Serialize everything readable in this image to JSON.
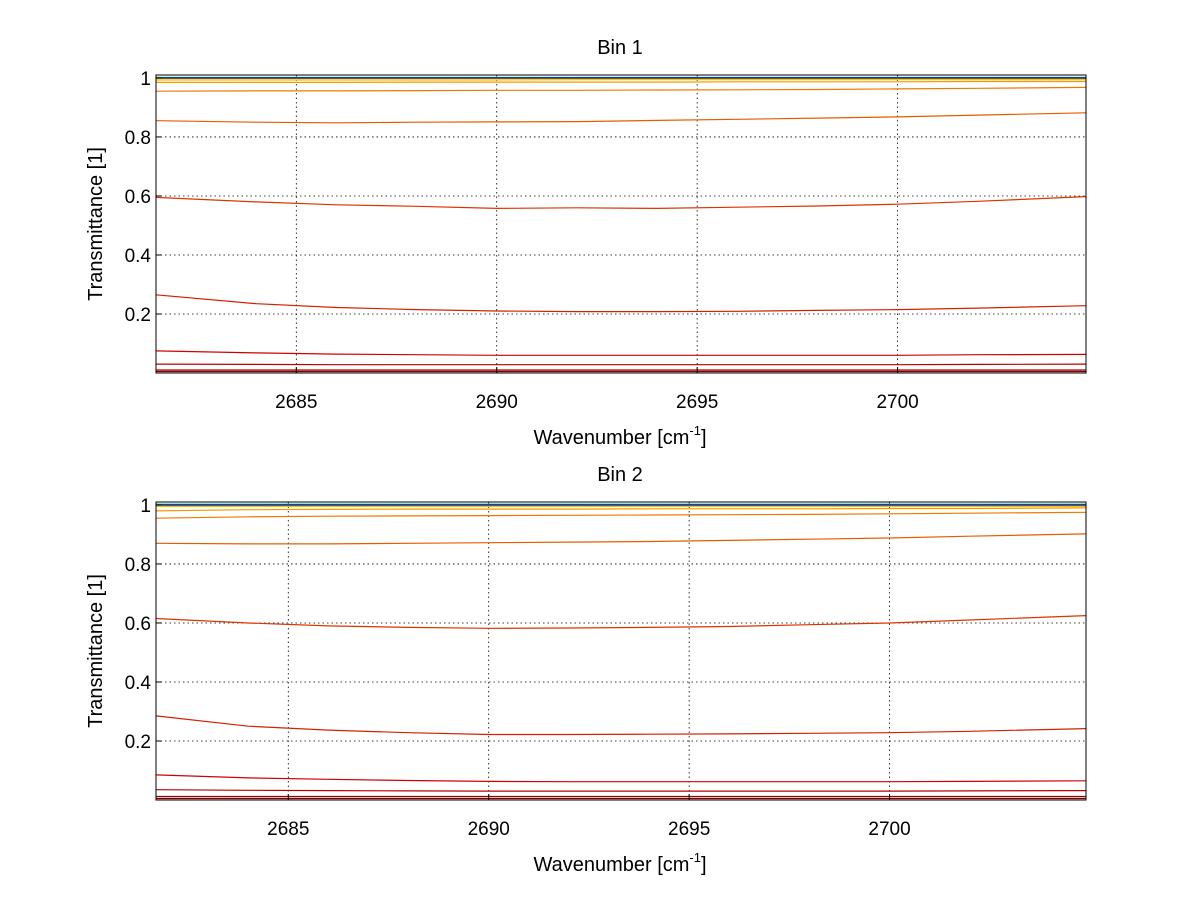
{
  "figure": {
    "background": "#ffffff"
  },
  "chart_data": [
    {
      "type": "line",
      "title": "Bin 1",
      "xlabel": "Wavenumber [cm",
      "xlabel_sup": "-1",
      "xlabel_suffix": "]",
      "ylabel": "Transmittance [1]",
      "xlim": [
        2681.5,
        2704.7
      ],
      "ylim": [
        0,
        1.01
      ],
      "xticks": [
        2685,
        2690,
        2695,
        2700
      ],
      "yticks": [
        0.2,
        0.4,
        0.6,
        0.8,
        1
      ],
      "ytick_labels": [
        "0.2",
        "0.4",
        "0.6",
        "0.8",
        "1"
      ],
      "grid": true,
      "x": [
        2681.5,
        2684,
        2686,
        2688,
        2690,
        2692,
        2694,
        2696,
        2698,
        2700,
        2702,
        2704.7
      ],
      "series": [
        {
          "color": "#800000",
          "values": [
            0.005,
            0.005,
            0.005,
            0.005,
            0.005,
            0.005,
            0.005,
            0.005,
            0.005,
            0.005,
            0.005,
            0.005
          ]
        },
        {
          "color": "#9b0000",
          "values": [
            0.01,
            0.01,
            0.01,
            0.01,
            0.01,
            0.01,
            0.01,
            0.01,
            0.01,
            0.01,
            0.01,
            0.01
          ]
        },
        {
          "color": "#b80000",
          "values": [
            0.03,
            0.029,
            0.028,
            0.028,
            0.028,
            0.028,
            0.028,
            0.028,
            0.028,
            0.028,
            0.029,
            0.03
          ]
        },
        {
          "color": "#d40000",
          "values": [
            0.075,
            0.068,
            0.064,
            0.062,
            0.06,
            0.06,
            0.06,
            0.06,
            0.06,
            0.06,
            0.062,
            0.063
          ]
        },
        {
          "color": "#d42000",
          "values": [
            0.265,
            0.235,
            0.222,
            0.215,
            0.21,
            0.208,
            0.208,
            0.209,
            0.212,
            0.215,
            0.22,
            0.228
          ]
        },
        {
          "color": "#dd3300",
          "values": [
            0.595,
            0.58,
            0.57,
            0.565,
            0.558,
            0.56,
            0.558,
            0.562,
            0.566,
            0.572,
            0.582,
            0.598
          ]
        },
        {
          "color": "#e85c00",
          "values": [
            0.855,
            0.85,
            0.848,
            0.85,
            0.851,
            0.852,
            0.856,
            0.86,
            0.864,
            0.868,
            0.874,
            0.882
          ]
        },
        {
          "color": "#f07800",
          "values": [
            0.955,
            0.956,
            0.956,
            0.957,
            0.958,
            0.958,
            0.959,
            0.96,
            0.961,
            0.963,
            0.965,
            0.968
          ]
        },
        {
          "color": "#f59a00",
          "values": [
            0.985,
            0.985,
            0.985,
            0.986,
            0.986,
            0.986,
            0.986,
            0.987,
            0.987,
            0.987,
            0.988,
            0.988
          ]
        },
        {
          "color": "#fbbf00",
          "values": [
            0.993,
            0.993,
            0.993,
            0.993,
            0.993,
            0.994,
            0.994,
            0.994,
            0.994,
            0.994,
            0.994,
            0.994
          ]
        },
        {
          "color": "#ffdd00",
          "values": [
            0.998,
            0.998,
            0.998,
            0.998,
            0.998,
            0.998,
            0.998,
            0.998,
            0.998,
            0.998,
            0.998,
            0.998
          ]
        },
        {
          "color": "#22c3c3",
          "values": [
            1.002,
            1.002,
            1.002,
            1.002,
            1.002,
            1.002,
            1.002,
            1.002,
            1.002,
            1.002,
            1.002,
            1.002
          ]
        },
        {
          "color": "#000080",
          "values": [
            1.0,
            1.0,
            1.0,
            1.0,
            1.0,
            1.0,
            1.0,
            1.0,
            1.0,
            1.0,
            1.0,
            1.0
          ]
        }
      ]
    },
    {
      "type": "line",
      "title": "Bin 2",
      "xlabel": "Wavenumber [cm",
      "xlabel_sup": "-1",
      "xlabel_suffix": "]",
      "ylabel": "Transmittance [1]",
      "xlim": [
        2681.7,
        2704.9
      ],
      "ylim": [
        0,
        1.01
      ],
      "xticks": [
        2685,
        2690,
        2695,
        2700
      ],
      "yticks": [
        0.2,
        0.4,
        0.6,
        0.8,
        1
      ],
      "ytick_labels": [
        "0.2",
        "0.4",
        "0.6",
        "0.8",
        "1"
      ],
      "grid": true,
      "x": [
        2681.7,
        2684,
        2686,
        2688,
        2690,
        2692,
        2694,
        2696,
        2698,
        2700,
        2702,
        2704.9
      ],
      "series": [
        {
          "color": "#800000",
          "values": [
            0.005,
            0.005,
            0.005,
            0.005,
            0.005,
            0.005,
            0.005,
            0.005,
            0.005,
            0.005,
            0.005,
            0.005
          ]
        },
        {
          "color": "#9b0000",
          "values": [
            0.012,
            0.012,
            0.012,
            0.012,
            0.012,
            0.012,
            0.012,
            0.012,
            0.012,
            0.012,
            0.012,
            0.012
          ]
        },
        {
          "color": "#b80000",
          "values": [
            0.035,
            0.033,
            0.032,
            0.031,
            0.03,
            0.03,
            0.03,
            0.03,
            0.03,
            0.03,
            0.031,
            0.032
          ]
        },
        {
          "color": "#d40000",
          "values": [
            0.085,
            0.075,
            0.07,
            0.066,
            0.063,
            0.062,
            0.062,
            0.062,
            0.062,
            0.062,
            0.063,
            0.065
          ]
        },
        {
          "color": "#d42000",
          "values": [
            0.285,
            0.25,
            0.237,
            0.228,
            0.222,
            0.222,
            0.223,
            0.224,
            0.226,
            0.228,
            0.233,
            0.242
          ]
        },
        {
          "color": "#dd3300",
          "values": [
            0.615,
            0.6,
            0.59,
            0.585,
            0.582,
            0.583,
            0.585,
            0.588,
            0.594,
            0.6,
            0.61,
            0.625
          ]
        },
        {
          "color": "#e85c00",
          "values": [
            0.87,
            0.868,
            0.868,
            0.87,
            0.872,
            0.874,
            0.876,
            0.88,
            0.884,
            0.888,
            0.894,
            0.902
          ]
        },
        {
          "color": "#f07800",
          "values": [
            0.955,
            0.96,
            0.962,
            0.963,
            0.964,
            0.965,
            0.966,
            0.967,
            0.968,
            0.97,
            0.972,
            0.975
          ]
        },
        {
          "color": "#f59a00",
          "values": [
            0.98,
            0.984,
            0.985,
            0.986,
            0.986,
            0.986,
            0.987,
            0.987,
            0.987,
            0.988,
            0.988,
            0.99
          ]
        },
        {
          "color": "#fbbf00",
          "values": [
            0.995,
            0.995,
            0.995,
            0.995,
            0.995,
            0.995,
            0.995,
            0.995,
            0.995,
            0.995,
            0.995,
            0.995
          ]
        },
        {
          "color": "#ffdd00",
          "values": [
            0.999,
            0.999,
            0.999,
            0.999,
            0.999,
            0.999,
            0.999,
            0.999,
            0.999,
            0.999,
            0.999,
            0.999
          ]
        },
        {
          "color": "#22c3c3",
          "values": [
            1.003,
            1.003,
            1.003,
            1.003,
            1.003,
            1.003,
            1.003,
            1.003,
            1.003,
            1.003,
            1.003,
            1.003
          ]
        },
        {
          "color": "#000080",
          "values": [
            1.0,
            1.0,
            1.0,
            1.0,
            1.0,
            1.0,
            1.0,
            1.0,
            1.0,
            1.0,
            1.0,
            1.0
          ]
        }
      ]
    }
  ]
}
